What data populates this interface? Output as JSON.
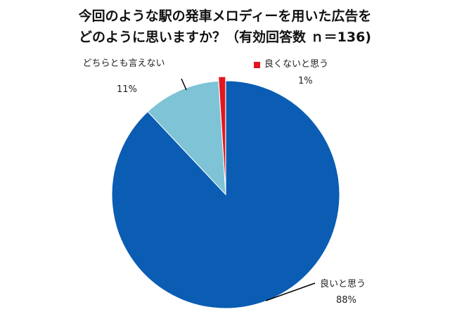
{
  "chart_data": {
    "type": "pie",
    "title": [
      "今回のような駅の発車メロディーを用いた広告を",
      "どのように思いますか？（有効回答数 ｎ＝136)"
    ],
    "categories": [
      "良いと思う",
      "どちらとも言えない",
      "良くないと思う"
    ],
    "values": [
      88,
      11,
      1
    ],
    "value_labels": [
      "88%",
      "11%",
      "1%"
    ],
    "colors": [
      "#0a5db3",
      "#7ec3d6",
      "#e3161d"
    ]
  }
}
